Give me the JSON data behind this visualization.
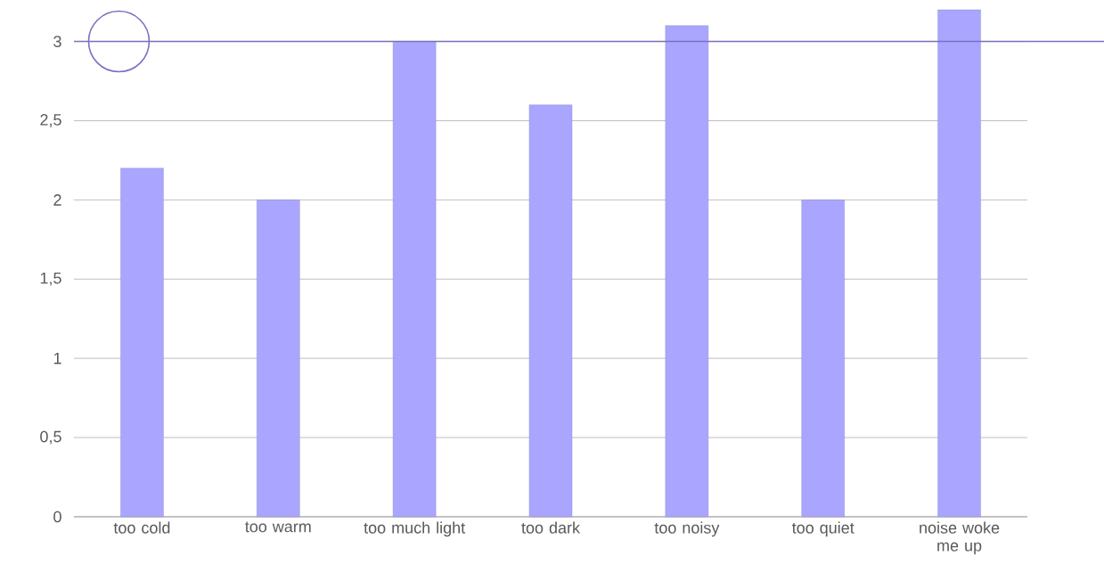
{
  "chart_data": {
    "type": "bar",
    "categories": [
      "too cold",
      "too warm",
      "too much light",
      "too dark",
      "too noisy",
      "too quiet",
      "noise woke me up"
    ],
    "values": [
      2.2,
      2.0,
      3.0,
      2.6,
      3.1,
      2.0,
      3.2
    ],
    "color": "#aaa6ff",
    "ylim": [
      0,
      3.2
    ],
    "yticks": [
      0,
      {
        "value": 0.5,
        "label": "0,5"
      },
      1,
      {
        "value": 1.5,
        "label": "1,5"
      },
      2,
      {
        "value": 2.5,
        "label": "2,5"
      },
      3
    ],
    "grid": "y",
    "ref_lines": [
      {
        "axis": "y",
        "value": 3,
        "color": "#7a70bf"
      }
    ]
  }
}
